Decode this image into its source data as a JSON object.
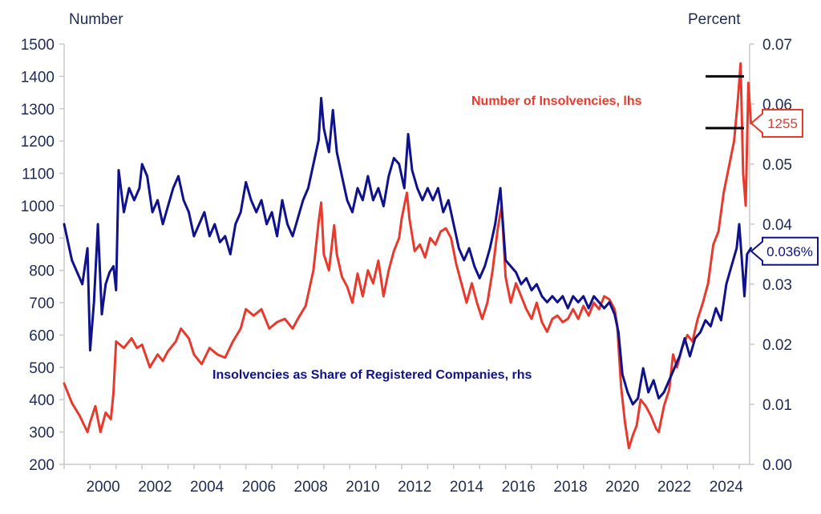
{
  "chart_data": {
    "type": "line",
    "title": "",
    "y_left_label": "Number",
    "y_right_label": "Percent",
    "y_left_range": [
      200,
      1500
    ],
    "y_right_range": [
      0.0,
      0.07
    ],
    "x_range": [
      1999,
      2025.4
    ],
    "y_left_ticks": [
      "200",
      "300",
      "400",
      "500",
      "600",
      "700",
      "800",
      "900",
      "1000",
      "1100",
      "1200",
      "1300",
      "1400",
      "1500"
    ],
    "y_right_ticks": [
      "0.00",
      "0.01",
      "0.02",
      "0.03",
      "0.04",
      "0.05",
      "0.06",
      "0.07"
    ],
    "x_ticks": [
      "2000",
      "2002",
      "2004",
      "2006",
      "2008",
      "2010",
      "2012",
      "2014",
      "2016",
      "2018",
      "2020",
      "2022",
      "2024"
    ],
    "grid": false,
    "series": [
      {
        "name": "Number of Insolvencies, lhs",
        "axis": "left",
        "color": "#e8392d",
        "points": [
          [
            1999.0,
            450
          ],
          [
            1999.3,
            390
          ],
          [
            1999.6,
            350
          ],
          [
            1999.9,
            300
          ],
          [
            2000.0,
            330
          ],
          [
            2000.2,
            380
          ],
          [
            2000.4,
            300
          ],
          [
            2000.6,
            360
          ],
          [
            2000.8,
            340
          ],
          [
            2000.9,
            420
          ],
          [
            2001.0,
            580
          ],
          [
            2001.3,
            560
          ],
          [
            2001.6,
            590
          ],
          [
            2001.8,
            560
          ],
          [
            2002.0,
            570
          ],
          [
            2002.3,
            500
          ],
          [
            2002.6,
            540
          ],
          [
            2002.8,
            520
          ],
          [
            2003.0,
            550
          ],
          [
            2003.3,
            580
          ],
          [
            2003.5,
            620
          ],
          [
            2003.8,
            590
          ],
          [
            2004.0,
            540
          ],
          [
            2004.3,
            510
          ],
          [
            2004.6,
            560
          ],
          [
            2004.9,
            540
          ],
          [
            2005.2,
            530
          ],
          [
            2005.5,
            580
          ],
          [
            2005.8,
            620
          ],
          [
            2006.0,
            680
          ],
          [
            2006.3,
            660
          ],
          [
            2006.6,
            680
          ],
          [
            2006.9,
            620
          ],
          [
            2007.2,
            640
          ],
          [
            2007.5,
            650
          ],
          [
            2007.8,
            620
          ],
          [
            2008.0,
            650
          ],
          [
            2008.3,
            690
          ],
          [
            2008.6,
            800
          ],
          [
            2008.8,
            950
          ],
          [
            2008.9,
            1010
          ],
          [
            2009.0,
            850
          ],
          [
            2009.2,
            800
          ],
          [
            2009.4,
            940
          ],
          [
            2009.5,
            850
          ],
          [
            2009.7,
            780
          ],
          [
            2009.9,
            750
          ],
          [
            2010.1,
            700
          ],
          [
            2010.3,
            790
          ],
          [
            2010.5,
            720
          ],
          [
            2010.7,
            800
          ],
          [
            2010.9,
            760
          ],
          [
            2011.1,
            830
          ],
          [
            2011.3,
            720
          ],
          [
            2011.5,
            800
          ],
          [
            2011.7,
            860
          ],
          [
            2011.9,
            900
          ],
          [
            2012.0,
            960
          ],
          [
            2012.2,
            1040
          ],
          [
            2012.3,
            960
          ],
          [
            2012.5,
            860
          ],
          [
            2012.7,
            880
          ],
          [
            2012.9,
            840
          ],
          [
            2013.1,
            900
          ],
          [
            2013.3,
            880
          ],
          [
            2013.5,
            920
          ],
          [
            2013.7,
            930
          ],
          [
            2013.9,
            900
          ],
          [
            2014.1,
            820
          ],
          [
            2014.3,
            760
          ],
          [
            2014.5,
            700
          ],
          [
            2014.7,
            760
          ],
          [
            2014.9,
            700
          ],
          [
            2015.1,
            650
          ],
          [
            2015.3,
            700
          ],
          [
            2015.5,
            800
          ],
          [
            2015.7,
            930
          ],
          [
            2015.85,
            1000
          ],
          [
            2016.0,
            780
          ],
          [
            2016.2,
            700
          ],
          [
            2016.4,
            760
          ],
          [
            2016.6,
            720
          ],
          [
            2016.8,
            680
          ],
          [
            2017.0,
            650
          ],
          [
            2017.2,
            700
          ],
          [
            2017.4,
            640
          ],
          [
            2017.6,
            610
          ],
          [
            2017.8,
            650
          ],
          [
            2018.0,
            660
          ],
          [
            2018.2,
            640
          ],
          [
            2018.4,
            650
          ],
          [
            2018.6,
            680
          ],
          [
            2018.8,
            650
          ],
          [
            2019.0,
            690
          ],
          [
            2019.2,
            660
          ],
          [
            2019.4,
            700
          ],
          [
            2019.6,
            680
          ],
          [
            2019.8,
            720
          ],
          [
            2020.0,
            710
          ],
          [
            2020.2,
            680
          ],
          [
            2020.3,
            630
          ],
          [
            2020.45,
            440
          ],
          [
            2020.6,
            330
          ],
          [
            2020.75,
            250
          ],
          [
            2020.9,
            290
          ],
          [
            2021.05,
            320
          ],
          [
            2021.2,
            400
          ],
          [
            2021.4,
            380
          ],
          [
            2021.6,
            350
          ],
          [
            2021.8,
            310
          ],
          [
            2021.9,
            300
          ],
          [
            2022.1,
            380
          ],
          [
            2022.3,
            430
          ],
          [
            2022.45,
            540
          ],
          [
            2022.6,
            500
          ],
          [
            2022.8,
            560
          ],
          [
            2023.0,
            600
          ],
          [
            2023.2,
            580
          ],
          [
            2023.4,
            650
          ],
          [
            2023.6,
            700
          ],
          [
            2023.8,
            760
          ],
          [
            2024.0,
            880
          ],
          [
            2024.2,
            920
          ],
          [
            2024.4,
            1040
          ],
          [
            2024.6,
            1120
          ],
          [
            2024.8,
            1200
          ],
          [
            2024.95,
            1330
          ],
          [
            2025.05,
            1440
          ],
          [
            2025.15,
            1100
          ],
          [
            2025.25,
            1000
          ],
          [
            2025.35,
            1380
          ],
          [
            2025.45,
            1255
          ]
        ]
      },
      {
        "name": "Insolvencies as Share of Registered Companies, rhs",
        "axis": "right",
        "color": "#0f128a",
        "points": [
          [
            1999.0,
            0.04
          ],
          [
            1999.3,
            0.034
          ],
          [
            1999.5,
            0.032
          ],
          [
            1999.7,
            0.03
          ],
          [
            1999.9,
            0.036
          ],
          [
            2000.0,
            0.019
          ],
          [
            2000.15,
            0.027
          ],
          [
            2000.3,
            0.04
          ],
          [
            2000.45,
            0.025
          ],
          [
            2000.6,
            0.03
          ],
          [
            2000.75,
            0.032
          ],
          [
            2000.9,
            0.033
          ],
          [
            2001.0,
            0.029
          ],
          [
            2001.1,
            0.049
          ],
          [
            2001.3,
            0.042
          ],
          [
            2001.5,
            0.046
          ],
          [
            2001.7,
            0.044
          ],
          [
            2001.9,
            0.046
          ],
          [
            2002.0,
            0.05
          ],
          [
            2002.2,
            0.048
          ],
          [
            2002.4,
            0.042
          ],
          [
            2002.6,
            0.044
          ],
          [
            2002.8,
            0.04
          ],
          [
            2003.0,
            0.043
          ],
          [
            2003.2,
            0.046
          ],
          [
            2003.4,
            0.048
          ],
          [
            2003.6,
            0.044
          ],
          [
            2003.8,
            0.042
          ],
          [
            2004.0,
            0.038
          ],
          [
            2004.2,
            0.04
          ],
          [
            2004.4,
            0.042
          ],
          [
            2004.6,
            0.038
          ],
          [
            2004.8,
            0.04
          ],
          [
            2005.0,
            0.037
          ],
          [
            2005.2,
            0.038
          ],
          [
            2005.4,
            0.035
          ],
          [
            2005.6,
            0.04
          ],
          [
            2005.8,
            0.042
          ],
          [
            2006.0,
            0.047
          ],
          [
            2006.2,
            0.044
          ],
          [
            2006.4,
            0.042
          ],
          [
            2006.6,
            0.044
          ],
          [
            2006.8,
            0.04
          ],
          [
            2007.0,
            0.042
          ],
          [
            2007.2,
            0.038
          ],
          [
            2007.4,
            0.044
          ],
          [
            2007.6,
            0.04
          ],
          [
            2007.8,
            0.038
          ],
          [
            2008.0,
            0.041
          ],
          [
            2008.2,
            0.044
          ],
          [
            2008.4,
            0.046
          ],
          [
            2008.6,
            0.05
          ],
          [
            2008.8,
            0.054
          ],
          [
            2008.9,
            0.061
          ],
          [
            2009.0,
            0.056
          ],
          [
            2009.2,
            0.052
          ],
          [
            2009.35,
            0.059
          ],
          [
            2009.5,
            0.052
          ],
          [
            2009.7,
            0.048
          ],
          [
            2009.9,
            0.044
          ],
          [
            2010.1,
            0.042
          ],
          [
            2010.3,
            0.046
          ],
          [
            2010.5,
            0.044
          ],
          [
            2010.7,
            0.048
          ],
          [
            2010.9,
            0.044
          ],
          [
            2011.1,
            0.046
          ],
          [
            2011.3,
            0.043
          ],
          [
            2011.5,
            0.048
          ],
          [
            2011.7,
            0.051
          ],
          [
            2011.9,
            0.05
          ],
          [
            2012.1,
            0.046
          ],
          [
            2012.25,
            0.055
          ],
          [
            2012.4,
            0.049
          ],
          [
            2012.6,
            0.046
          ],
          [
            2012.8,
            0.044
          ],
          [
            2013.0,
            0.046
          ],
          [
            2013.2,
            0.044
          ],
          [
            2013.4,
            0.046
          ],
          [
            2013.6,
            0.042
          ],
          [
            2013.8,
            0.044
          ],
          [
            2014.0,
            0.04
          ],
          [
            2014.2,
            0.036
          ],
          [
            2014.4,
            0.034
          ],
          [
            2014.6,
            0.036
          ],
          [
            2014.8,
            0.033
          ],
          [
            2015.0,
            0.031
          ],
          [
            2015.2,
            0.033
          ],
          [
            2015.4,
            0.036
          ],
          [
            2015.6,
            0.04
          ],
          [
            2015.8,
            0.046
          ],
          [
            2016.0,
            0.034
          ],
          [
            2016.2,
            0.033
          ],
          [
            2016.4,
            0.032
          ],
          [
            2016.6,
            0.03
          ],
          [
            2016.8,
            0.031
          ],
          [
            2017.0,
            0.029
          ],
          [
            2017.2,
            0.03
          ],
          [
            2017.4,
            0.028
          ],
          [
            2017.6,
            0.027
          ],
          [
            2017.8,
            0.028
          ],
          [
            2018.0,
            0.027
          ],
          [
            2018.2,
            0.028
          ],
          [
            2018.4,
            0.026
          ],
          [
            2018.6,
            0.028
          ],
          [
            2018.8,
            0.027
          ],
          [
            2019.0,
            0.028
          ],
          [
            2019.2,
            0.026
          ],
          [
            2019.4,
            0.028
          ],
          [
            2019.6,
            0.027
          ],
          [
            2019.8,
            0.026
          ],
          [
            2020.0,
            0.027
          ],
          [
            2020.2,
            0.025
          ],
          [
            2020.35,
            0.022
          ],
          [
            2020.5,
            0.015
          ],
          [
            2020.7,
            0.012
          ],
          [
            2020.9,
            0.01
          ],
          [
            2021.1,
            0.011
          ],
          [
            2021.3,
            0.016
          ],
          [
            2021.5,
            0.012
          ],
          [
            2021.7,
            0.014
          ],
          [
            2021.9,
            0.011
          ],
          [
            2022.1,
            0.012
          ],
          [
            2022.3,
            0.014
          ],
          [
            2022.5,
            0.016
          ],
          [
            2022.7,
            0.018
          ],
          [
            2022.9,
            0.021
          ],
          [
            2023.1,
            0.018
          ],
          [
            2023.3,
            0.021
          ],
          [
            2023.5,
            0.022
          ],
          [
            2023.7,
            0.024
          ],
          [
            2023.9,
            0.023
          ],
          [
            2024.1,
            0.026
          ],
          [
            2024.3,
            0.024
          ],
          [
            2024.5,
            0.03
          ],
          [
            2024.7,
            0.033
          ],
          [
            2024.9,
            0.036
          ],
          [
            2025.0,
            0.04
          ],
          [
            2025.1,
            0.034
          ],
          [
            2025.2,
            0.028
          ],
          [
            2025.3,
            0.035
          ],
          [
            2025.45,
            0.036
          ]
        ]
      }
    ],
    "series_labels": {
      "insolvencies": "Number of Insolvencies, lhs",
      "share": "Insolvencies as Share of Registered Companies, rhs"
    },
    "callouts": {
      "left_value": "1255",
      "right_value": "0.036%"
    },
    "range_markers": [
      1400,
      1240
    ]
  }
}
